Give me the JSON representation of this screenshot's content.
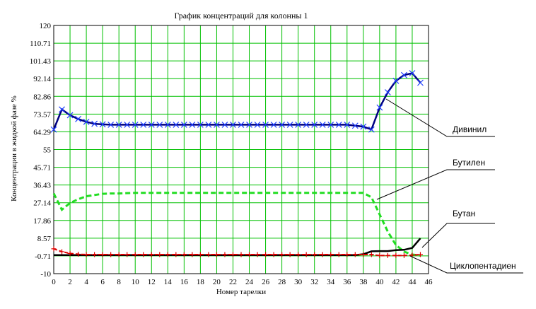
{
  "chart_data": {
    "type": "line",
    "title": "График концентраций  для колонны 1",
    "xlabel": "Номер тарелки",
    "ylabel": "Концентрации в жидкой фазе %",
    "xlim": [
      0,
      46
    ],
    "ylim": [
      -10,
      120
    ],
    "x_ticks": [
      "0",
      "2",
      "4",
      "6",
      "8",
      "10",
      "12",
      "14",
      "16",
      "18",
      "20",
      "22",
      "24",
      "26",
      "28",
      "30",
      "32",
      "34",
      "36",
      "38",
      "40",
      "42",
      "44",
      "46"
    ],
    "y_ticks": [
      "120",
      "110.71",
      "101.43",
      "92.14",
      "82.86",
      "73.57",
      "64.29",
      "55",
      "45.71",
      "36.43",
      "27.14",
      "17.86",
      "8.57",
      "-0.71",
      "-10"
    ],
    "grid": true,
    "series": [
      {
        "name": "Дивинил",
        "color": "#000080",
        "marker": "x",
        "x": [
          0,
          1,
          2,
          3,
          4,
          5,
          6,
          7,
          8,
          9,
          10,
          11,
          12,
          13,
          14,
          15,
          16,
          17,
          18,
          19,
          20,
          21,
          22,
          23,
          24,
          25,
          26,
          27,
          28,
          29,
          30,
          31,
          32,
          33,
          34,
          35,
          36,
          37,
          38,
          39,
          40,
          41,
          42,
          43,
          44,
          45
        ],
        "values": [
          65.5,
          76,
          73,
          71,
          69.5,
          68.5,
          68.2,
          68,
          68,
          68,
          68,
          68,
          68,
          68,
          68,
          68,
          68,
          68,
          68,
          68,
          68,
          68,
          68,
          68,
          68,
          68,
          68,
          68,
          68,
          68,
          68,
          68,
          68,
          68,
          68,
          68,
          68,
          67.5,
          67,
          65.5,
          77,
          85,
          91,
          94,
          95,
          90
        ]
      },
      {
        "name": "Бутилен",
        "color": "#22dd22",
        "marker": "none",
        "x": [
          0,
          1,
          2,
          3,
          4,
          5,
          6,
          7,
          8,
          9,
          10,
          11,
          12,
          13,
          14,
          15,
          16,
          17,
          18,
          19,
          20,
          21,
          22,
          23,
          24,
          25,
          26,
          27,
          28,
          29,
          30,
          31,
          32,
          33,
          34,
          35,
          36,
          37,
          38,
          39,
          40,
          41,
          42,
          43,
          44,
          45
        ],
        "values": [
          32,
          23.5,
          27,
          29,
          30.5,
          31.2,
          31.8,
          32,
          32,
          32.2,
          32.3,
          32.3,
          32.3,
          32.3,
          32.3,
          32.3,
          32.3,
          32.3,
          32.3,
          32.3,
          32.3,
          32.3,
          32.3,
          32.3,
          32.3,
          32.3,
          32.3,
          32.3,
          32.3,
          32.3,
          32.3,
          32.3,
          32.3,
          32.3,
          32.3,
          32.3,
          32.3,
          32.3,
          32.3,
          30,
          21,
          12,
          5,
          1.5,
          0,
          -0.5
        ]
      },
      {
        "name": "Бутан",
        "color": "#000000",
        "marker": "none",
        "x": [
          0,
          1,
          2,
          3,
          4,
          5,
          6,
          7,
          8,
          9,
          10,
          11,
          12,
          13,
          14,
          15,
          16,
          17,
          18,
          19,
          20,
          21,
          22,
          23,
          24,
          25,
          26,
          27,
          28,
          29,
          30,
          31,
          32,
          33,
          34,
          35,
          36,
          37,
          38,
          39,
          40,
          41,
          42,
          43,
          44,
          45
        ],
        "values": [
          -0.3,
          -0.3,
          -0.3,
          -0.3,
          -0.3,
          -0.3,
          -0.3,
          -0.3,
          -0.3,
          -0.3,
          -0.3,
          -0.3,
          -0.3,
          -0.3,
          -0.3,
          -0.3,
          -0.3,
          -0.3,
          -0.3,
          -0.3,
          -0.3,
          -0.3,
          -0.3,
          -0.3,
          -0.3,
          -0.3,
          -0.3,
          -0.3,
          -0.3,
          -0.3,
          -0.3,
          -0.3,
          -0.3,
          -0.3,
          -0.3,
          -0.3,
          -0.3,
          -0.3,
          0.2,
          1.7,
          1.8,
          1.8,
          2.3,
          2.5,
          3.5,
          8.5
        ]
      },
      {
        "name": "Циклопентадиен",
        "color": "#dd0000",
        "marker": "+",
        "x": [
          0,
          1,
          2,
          3,
          4,
          5,
          6,
          7,
          8,
          9,
          10,
          11,
          12,
          13,
          14,
          15,
          16,
          17,
          18,
          19,
          20,
          21,
          22,
          23,
          24,
          25,
          26,
          27,
          28,
          29,
          30,
          31,
          32,
          33,
          34,
          35,
          36,
          37,
          38,
          39,
          40,
          41,
          42,
          43,
          44,
          45
        ],
        "values": [
          3,
          1.5,
          0.6,
          0.2,
          0,
          0,
          0,
          0,
          0,
          0,
          0,
          0,
          0,
          0,
          0,
          0,
          0,
          0,
          0,
          0,
          0,
          0,
          0,
          0,
          0,
          0,
          0,
          0,
          0,
          0,
          0,
          0,
          0,
          0,
          0,
          0,
          0,
          0,
          0,
          0,
          -0.5,
          -0.5,
          -0.5,
          -0.5,
          -0.3,
          0
        ]
      }
    ],
    "callouts": [
      {
        "label": "Дивинил"
      },
      {
        "label": "Бутилен"
      },
      {
        "label": "Бутан"
      },
      {
        "label": "Циклопентадиен"
      }
    ]
  }
}
